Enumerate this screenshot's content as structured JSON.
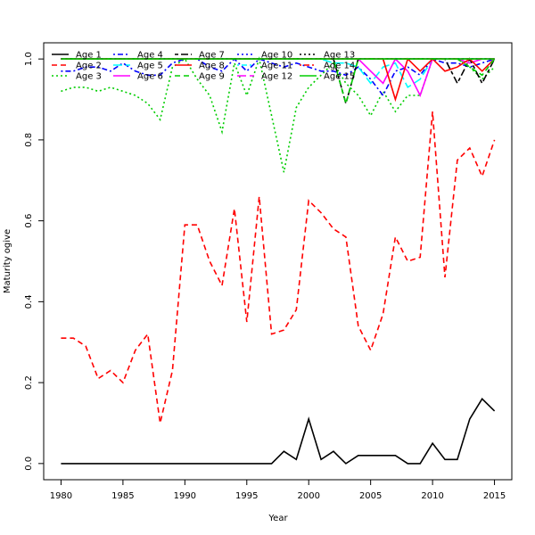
{
  "chart_data": {
    "type": "line",
    "title": "",
    "xlabel": "Year",
    "ylabel": "Maturity ogive",
    "xlim": [
      1978.6,
      2016.4
    ],
    "ylim": [
      -0.04,
      1.04
    ],
    "xticks": [
      1980,
      1985,
      1990,
      1995,
      2000,
      2005,
      2010,
      2015
    ],
    "yticks": [
      0.0,
      0.2,
      0.4,
      0.6,
      0.8,
      1.0
    ],
    "grid": false,
    "legend_position": "top-left",
    "x": [
      1980,
      1981,
      1982,
      1983,
      1984,
      1985,
      1986,
      1987,
      1988,
      1989,
      1990,
      1991,
      1992,
      1993,
      1994,
      1995,
      1996,
      1997,
      1998,
      1999,
      2000,
      2001,
      2002,
      2003,
      2004,
      2005,
      2006,
      2007,
      2008,
      2009,
      2010,
      2011,
      2012,
      2013,
      2014,
      2015
    ],
    "series": [
      {
        "name": "Age 1",
        "color": "#000000",
        "dash": "solid",
        "values": [
          0,
          0,
          0,
          0,
          0,
          0,
          0,
          0,
          0,
          0,
          0,
          0,
          0,
          0,
          0,
          0,
          0,
          0,
          0.03,
          0.01,
          0.11,
          0.01,
          0.03,
          0,
          0.02,
          0.02,
          0.02,
          0.02,
          0,
          0,
          0.05,
          0.01,
          0.01,
          0.11,
          0.16,
          0.13
        ]
      },
      {
        "name": "Age 2",
        "color": "#ff0000",
        "dash": "dashed",
        "values": [
          0.31,
          0.31,
          0.29,
          0.21,
          0.23,
          0.2,
          0.28,
          0.32,
          0.1,
          0.23,
          0.59,
          0.59,
          0.5,
          0.44,
          0.63,
          0.35,
          0.66,
          0.32,
          0.33,
          0.38,
          0.65,
          0.62,
          0.58,
          0.56,
          0.34,
          0.28,
          0.37,
          0.56,
          0.5,
          0.51,
          0.87,
          0.46,
          0.75,
          0.78,
          0.71,
          0.8
        ]
      },
      {
        "name": "Age 3",
        "color": "#00cd00",
        "dash": "dotted",
        "values": [
          0.92,
          0.93,
          0.93,
          0.92,
          0.93,
          0.92,
          0.91,
          0.89,
          0.85,
          0.98,
          1.0,
          0.95,
          0.91,
          0.82,
          0.99,
          0.91,
          1.0,
          0.86,
          0.72,
          0.88,
          0.93,
          0.96,
          0.99,
          0.94,
          0.91,
          0.86,
          0.92,
          0.87,
          0.91,
          0.91,
          1.0,
          1.0,
          1.0,
          0.98,
          0.95,
          0.98
        ]
      },
      {
        "name": "Age 4",
        "color": "#0000ff",
        "dash": "dashdot",
        "values": [
          0.97,
          0.97,
          0.98,
          0.98,
          0.97,
          0.99,
          0.97,
          0.96,
          0.96,
          0.99,
          1.0,
          1.0,
          0.98,
          0.97,
          1.0,
          0.97,
          1.0,
          0.99,
          0.98,
          0.99,
          0.98,
          0.97,
          0.97,
          0.96,
          0.98,
          0.95,
          0.91,
          0.97,
          0.98,
          0.96,
          1.0,
          0.99,
          0.99,
          0.98,
          0.99,
          1.0
        ]
      },
      {
        "name": "Age 5",
        "color": "#00ffff",
        "dash": "longdash",
        "values": [
          1,
          1,
          1,
          1,
          1,
          1,
          1,
          1,
          1,
          1,
          1,
          1,
          1,
          1,
          1,
          1,
          1,
          1,
          1,
          1,
          1,
          1,
          0.99,
          0.99,
          0.98,
          0.94,
          0.98,
          0.99,
          0.93,
          0.95,
          1.0,
          1.0,
          1.0,
          1.0,
          1.0,
          1.0
        ]
      },
      {
        "name": "Age 6",
        "color": "#ff00ff",
        "dash": "solid",
        "values": [
          1,
          1,
          1,
          1,
          1,
          1,
          1,
          1,
          1,
          1,
          1,
          1,
          1,
          1,
          1,
          1,
          1,
          1,
          1,
          1,
          1,
          1,
          1,
          1,
          1,
          0.97,
          0.94,
          1.0,
          0.97,
          0.91,
          1.0,
          1.0,
          1.0,
          0.99,
          1.0,
          1.0
        ]
      },
      {
        "name": "Age 7",
        "color": "#000000",
        "dash": "twodash",
        "values": [
          1,
          1,
          1,
          1,
          1,
          1,
          1,
          1,
          1,
          1,
          1,
          1,
          1,
          1,
          1,
          1,
          1,
          1,
          1,
          1,
          1,
          1,
          1,
          0.89,
          1,
          1,
          1,
          1,
          1,
          1,
          1,
          1,
          0.94,
          1.0,
          0.94,
          1.0
        ]
      },
      {
        "name": "Age 8",
        "color": "#ff0000",
        "dash": "solid",
        "values": [
          1,
          1,
          1,
          1,
          1,
          1,
          1,
          1,
          1,
          1,
          1,
          1,
          1,
          1,
          1,
          1,
          1,
          1,
          1,
          1,
          1,
          1,
          1,
          1,
          1,
          1,
          1,
          0.9,
          1.0,
          0.97,
          1.0,
          0.97,
          0.98,
          1.0,
          0.97,
          1.0
        ]
      },
      {
        "name": "Age 9",
        "color": "#00cd00",
        "dash": "dashed",
        "values": [
          1,
          1,
          1,
          1,
          1,
          1,
          1,
          1,
          1,
          1,
          1,
          1,
          1,
          1,
          1,
          1,
          1,
          1,
          1,
          1,
          1,
          1,
          1,
          0.89,
          1,
          1,
          1,
          1,
          1,
          1,
          1,
          1,
          1,
          0.98,
          0.96,
          1.0
        ]
      },
      {
        "name": "Age 10",
        "color": "#0000ff",
        "dash": "dotted",
        "values": [
          1,
          1,
          1,
          1,
          1,
          1,
          1,
          1,
          1,
          1,
          1,
          1,
          1,
          1,
          1,
          1,
          1,
          1,
          1,
          1,
          1,
          1,
          1,
          1,
          1,
          1,
          1,
          1,
          1,
          1,
          1,
          1,
          1,
          1,
          1,
          1
        ]
      },
      {
        "name": "Age 11",
        "color": "#00ffff",
        "dash": "dashdot",
        "values": [
          1,
          1,
          1,
          1,
          1,
          1,
          1,
          1,
          1,
          1,
          1,
          1,
          1,
          1,
          1,
          1,
          1,
          1,
          1,
          1,
          1,
          1,
          1,
          1,
          1,
          1,
          1,
          1,
          1,
          1,
          1,
          1,
          1,
          1,
          1,
          1
        ]
      },
      {
        "name": "Age 12",
        "color": "#ff00ff",
        "dash": "longdash",
        "values": [
          1,
          1,
          1,
          1,
          1,
          1,
          1,
          1,
          1,
          1,
          1,
          1,
          1,
          1,
          1,
          1,
          1,
          1,
          1,
          1,
          1,
          1,
          1,
          1,
          1,
          1,
          1,
          1,
          1,
          1,
          1,
          1,
          1,
          1,
          1,
          1
        ]
      },
      {
        "name": "Age 13",
        "color": "#000000",
        "dash": "dotted",
        "values": [
          1,
          1,
          1,
          1,
          1,
          1,
          1,
          1,
          1,
          1,
          1,
          1,
          1,
          1,
          1,
          1,
          1,
          1,
          1,
          1,
          1,
          1,
          1,
          1,
          1,
          1,
          1,
          1,
          1,
          1,
          1,
          1,
          1,
          1,
          1,
          1
        ]
      },
      {
        "name": "Age 14",
        "color": "#ff0000",
        "dash": "dashdot",
        "values": [
          1,
          1,
          1,
          1,
          1,
          1,
          1,
          1,
          1,
          1,
          1,
          1,
          1,
          1,
          1,
          1,
          1,
          1,
          1,
          1,
          1,
          1,
          1,
          1,
          1,
          1,
          1,
          1,
          1,
          1,
          1,
          1,
          1,
          1,
          1,
          1
        ]
      },
      {
        "name": "Age 15",
        "color": "#00cd00",
        "dash": "solid",
        "values": [
          1,
          1,
          1,
          1,
          1,
          1,
          1,
          1,
          1,
          1,
          1,
          1,
          1,
          1,
          1,
          1,
          1,
          1,
          1,
          1,
          1,
          1,
          1,
          1,
          1,
          1,
          1,
          1,
          1,
          1,
          1,
          1,
          1,
          1,
          1,
          1
        ]
      }
    ]
  }
}
